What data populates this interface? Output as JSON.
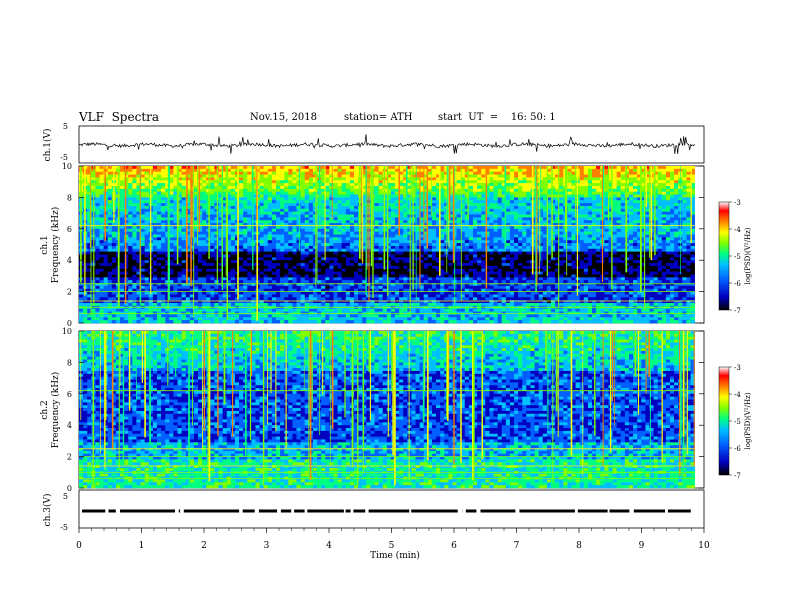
{
  "header": {
    "title": "VLF  Spectra",
    "date": "Nov.15, 2018",
    "station": "station= ATH",
    "start_ut": "start  UT  =    16: 50: 1"
  },
  "chart_data": [
    {
      "type": "line",
      "name": "ch1-waveform",
      "ylabel": "ch.1(V)",
      "ylim": [
        -5,
        5
      ],
      "yticks": [
        "5",
        "-5"
      ],
      "xlim": [
        0,
        10
      ],
      "note_values": "noisy waveform around 0 V with spikes up to about +/-2.5 V",
      "y_approx": [
        0.1,
        -0.3,
        0.2,
        -0.1,
        0.3,
        -0.2,
        0.0,
        0.2,
        -0.3,
        0.1
      ]
    },
    {
      "type": "heatmap",
      "name": "ch1-spectrogram",
      "ylabel": "ch.1 Frequency (kHz)",
      "ylim": [
        0,
        10
      ],
      "yticks": [
        "0",
        "2",
        "4",
        "6",
        "8",
        "10"
      ],
      "xlim": [
        0,
        10
      ],
      "colorbar": {
        "label": "log(PSD)(V²/Hz)",
        "range": [
          -7,
          -3
        ],
        "ticks": [
          "-3",
          "-4",
          "-5",
          "-6",
          "-7"
        ]
      }
    },
    {
      "type": "heatmap",
      "name": "ch2-spectrogram",
      "ylabel": "ch.2 Frequency (kHz)",
      "ylim": [
        0,
        10
      ],
      "yticks": [
        "0",
        "2",
        "4",
        "6",
        "8",
        "10"
      ],
      "xlim": [
        0,
        10
      ],
      "colorbar": {
        "label": "log(PSD)(V²/Hz)",
        "range": [
          -7,
          -3
        ],
        "ticks": [
          "-3",
          "-4",
          "-5",
          "-6",
          "-7"
        ]
      }
    },
    {
      "type": "line",
      "name": "ch3-signal",
      "ylabel": "ch.3(V)",
      "ylim": [
        -5,
        5
      ],
      "yticks": [
        "5",
        "-5"
      ],
      "xlim": [
        0,
        10
      ],
      "note_values": "pulse train near 0 V",
      "y_approx": [
        0,
        0,
        0,
        0,
        0,
        0,
        0,
        0,
        0,
        0
      ]
    }
  ],
  "xaxis": {
    "label": "Time  (min)",
    "ticks": [
      "0",
      "1",
      "2",
      "3",
      "4",
      "5",
      "6",
      "7",
      "8",
      "9",
      "10"
    ]
  },
  "colors": {
    "cmap": [
      "#000000",
      "#0000c0",
      "#0060ff",
      "#00c0ff",
      "#00ff80",
      "#80ff00",
      "#ffff00",
      "#ff8000",
      "#ff0000",
      "#ffffff"
    ]
  }
}
